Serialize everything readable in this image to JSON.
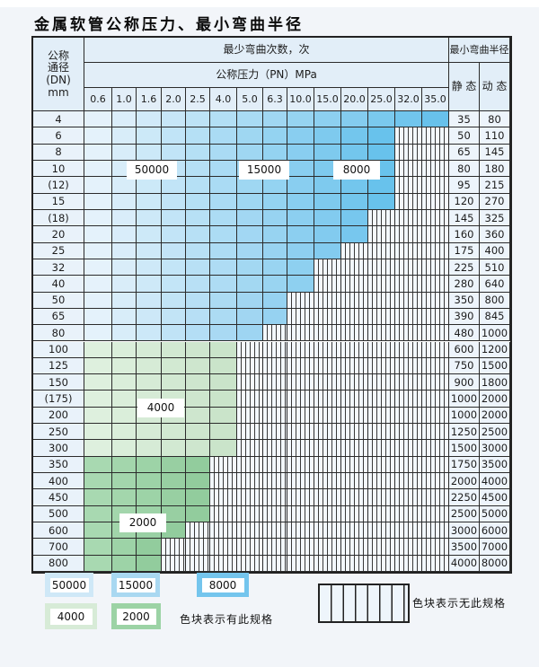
{
  "title": "金属软管公称压力、最小弯曲半径",
  "table": {
    "header": {
      "dn_label_lines": [
        "公称",
        "通径",
        "(DN)",
        "mm"
      ],
      "bend_cycles_label": "最少弯曲次数，次",
      "pressure_label": "公称压力（PN）MPa",
      "pressure_columns": [
        "0.6",
        "1.0",
        "1.6",
        "2.0",
        "2.5",
        "4.0",
        "5.0",
        "6.3",
        "10.0",
        "15.0",
        "20.0",
        "25.0",
        "32.0",
        "35.0"
      ],
      "radius_label": "最小弯曲半径",
      "static_label": "静 态",
      "dynamic_label": "动 态"
    },
    "rows": [
      {
        "dn": "4",
        "colored_through": "35.0",
        "palette": "blue",
        "static": "35",
        "dynamic": "80"
      },
      {
        "dn": "6",
        "colored_through": "25.0",
        "palette": "blue",
        "static": "50",
        "dynamic": "110"
      },
      {
        "dn": "8",
        "colored_through": "25.0",
        "palette": "blue",
        "static": "65",
        "dynamic": "145"
      },
      {
        "dn": "10",
        "colored_through": "25.0",
        "palette": "blue",
        "static": "80",
        "dynamic": "180"
      },
      {
        "dn": "(12)",
        "colored_through": "25.0",
        "palette": "blue",
        "static": "95",
        "dynamic": "215"
      },
      {
        "dn": "15",
        "colored_through": "25.0",
        "palette": "blue",
        "static": "120",
        "dynamic": "270"
      },
      {
        "dn": "(18)",
        "colored_through": "20.0",
        "palette": "blue",
        "static": "145",
        "dynamic": "325"
      },
      {
        "dn": "20",
        "colored_through": "20.0",
        "palette": "blue",
        "static": "160",
        "dynamic": "360"
      },
      {
        "dn": "25",
        "colored_through": "15.0",
        "palette": "blue",
        "static": "175",
        "dynamic": "400"
      },
      {
        "dn": "32",
        "colored_through": "10.0",
        "palette": "blue",
        "static": "225",
        "dynamic": "510"
      },
      {
        "dn": "40",
        "colored_through": "10.0",
        "palette": "blue",
        "static": "280",
        "dynamic": "640"
      },
      {
        "dn": "50",
        "colored_through": "6.3",
        "palette": "blue",
        "static": "350",
        "dynamic": "800"
      },
      {
        "dn": "65",
        "colored_through": "6.3",
        "palette": "blue",
        "static": "390",
        "dynamic": "845"
      },
      {
        "dn": "80",
        "colored_through": "5.0",
        "palette": "blue",
        "static": "480",
        "dynamic": "1000"
      },
      {
        "dn": "100",
        "colored_through": "4.0",
        "palette": "green-4000",
        "static": "600",
        "dynamic": "1200"
      },
      {
        "dn": "125",
        "colored_through": "4.0",
        "palette": "green-4000",
        "static": "750",
        "dynamic": "1500"
      },
      {
        "dn": "150",
        "colored_through": "4.0",
        "palette": "green-4000",
        "static": "900",
        "dynamic": "1800"
      },
      {
        "dn": "(175)",
        "colored_through": "4.0",
        "palette": "green-4000",
        "static": "1000",
        "dynamic": "2000"
      },
      {
        "dn": "200",
        "colored_through": "4.0",
        "palette": "green-4000",
        "static": "1000",
        "dynamic": "2000"
      },
      {
        "dn": "250",
        "colored_through": "4.0",
        "palette": "green-4000",
        "static": "1250",
        "dynamic": "2500"
      },
      {
        "dn": "300",
        "colored_through": "4.0",
        "palette": "green-4000",
        "static": "1500",
        "dynamic": "3000"
      },
      {
        "dn": "350",
        "colored_through": "2.5",
        "palette": "green-2000",
        "static": "1750",
        "dynamic": "3500"
      },
      {
        "dn": "400",
        "colored_through": "2.5",
        "palette": "green-2000",
        "static": "2000",
        "dynamic": "4000"
      },
      {
        "dn": "450",
        "colored_through": "2.5",
        "palette": "green-2000",
        "static": "2250",
        "dynamic": "4500"
      },
      {
        "dn": "500",
        "colored_through": "2.5",
        "palette": "green-2000",
        "static": "2500",
        "dynamic": "5000"
      },
      {
        "dn": "600",
        "colored_through": "2.0",
        "palette": "green-2000",
        "static": "3000",
        "dynamic": "6000"
      },
      {
        "dn": "700",
        "colored_through": "1.6",
        "palette": "green-2000",
        "static": "3500",
        "dynamic": "7000"
      },
      {
        "dn": "800",
        "colored_through": "1.6",
        "palette": "green-2000",
        "static": "4000",
        "dynamic": "8000"
      }
    ],
    "cycle_overlays": [
      {
        "text": "50000",
        "anchor_row": "10",
        "anchor_col": "1.6"
      },
      {
        "text": "15000",
        "anchor_row": "10",
        "anchor_col": "5.0"
      },
      {
        "text": "8000",
        "anchor_row": "10",
        "anchor_col": "20.0"
      },
      {
        "text": "4000",
        "anchor_row": "(175)",
        "anchor_col": "2.0"
      },
      {
        "text": "2000",
        "anchor_row": "500",
        "anchor_col": "1.0"
      }
    ]
  },
  "legend": {
    "items": [
      {
        "label": "50000",
        "color": "#cfe8f7"
      },
      {
        "label": "15000",
        "color": "#a9d8f1"
      },
      {
        "label": "8000",
        "color": "#74c5ed"
      },
      {
        "label": "4000",
        "color": "#d7ebd7"
      },
      {
        "label": "2000",
        "color": "#9cd3a5"
      }
    ],
    "has_spec_text": "色块表示有此规格",
    "no_spec_text": "色块表示无此规格"
  },
  "colors": {
    "grade_50000": "#e9f3fb",
    "grade_15000": "#aed9f2",
    "grade_8000": "#64c0eb",
    "grade_4000": "#d4e9d4",
    "grade_2000": "#9cd3a5",
    "no_spec_bg": "#f3f8fd"
  }
}
